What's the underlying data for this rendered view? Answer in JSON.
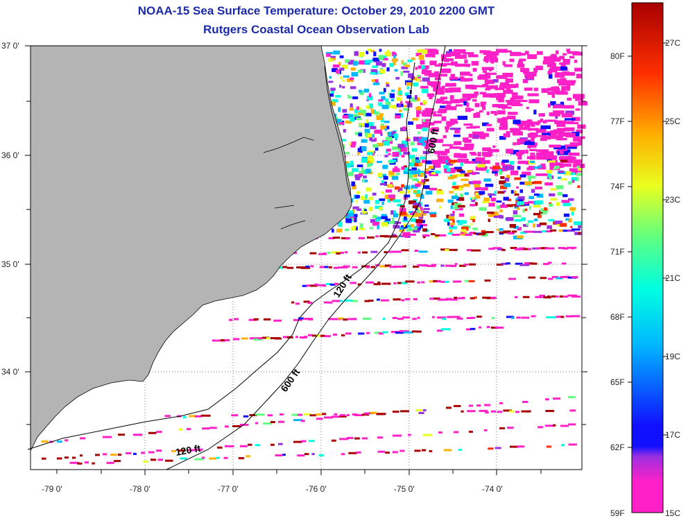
{
  "title": {
    "line1": "NOAA-15 Sea Surface Temperature:  October 29, 2010 2200 GMT",
    "line2": "Rutgers Coastal Ocean Observation Lab"
  },
  "axes": {
    "lat_labels": [
      "37 0'",
      "36 0'",
      "35 0'",
      "34 0'"
    ],
    "lon_labels": [
      "-79 0'",
      "-78 0'",
      "-77 0'",
      "-76 0'",
      "-75 0'",
      "-74 0'"
    ]
  },
  "contours": {
    "label_120_a": "120 ft",
    "label_120_b": "120 ft",
    "label_600_a": "600 ft",
    "label_600_b": "600 ft"
  },
  "colorbar": {
    "fahrenheit": [
      "80F",
      "77F",
      "74F",
      "71F",
      "68F",
      "65F",
      "62F",
      "59F"
    ],
    "celsius": [
      "27C",
      "25C",
      "23C",
      "21C",
      "19C",
      "17C",
      "15C"
    ]
  },
  "colors": {
    "land": "#b4b4b4",
    "title": "#1a2aa8",
    "scale": [
      "#ff20c8",
      "#9a30e0",
      "#1010ff",
      "#00b8ff",
      "#00ffe0",
      "#60ff80",
      "#e8ff20",
      "#ffb000",
      "#ff3000",
      "#a80000"
    ]
  }
}
